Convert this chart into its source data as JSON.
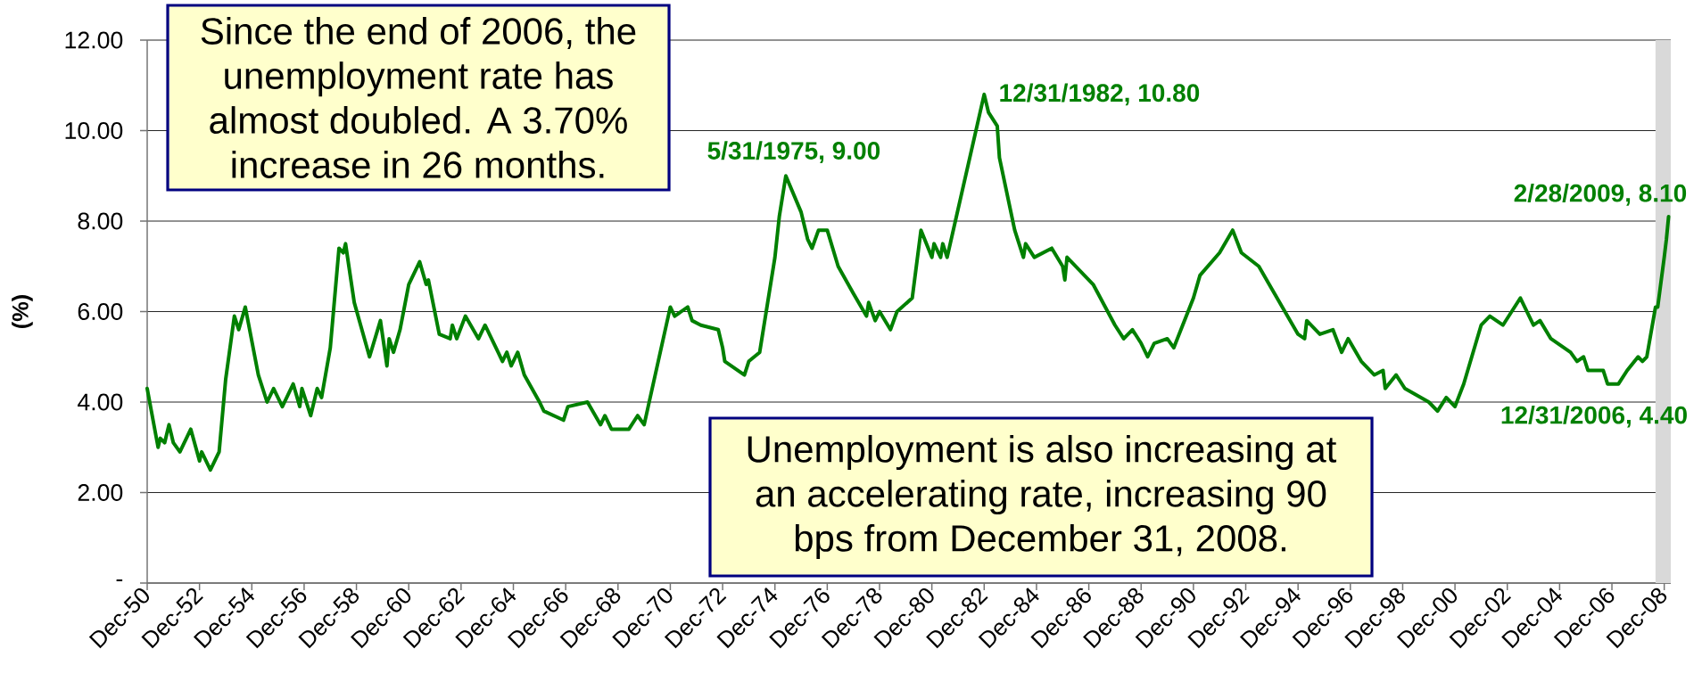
{
  "chart_data": {
    "type": "line",
    "ylabel": "(%)",
    "x": [
      "1950-12",
      "1951-05",
      "1951-06",
      "1951-08",
      "1951-10",
      "1951-12",
      "1952-03",
      "1952-08",
      "1952-12",
      "1953-01",
      "1953-05",
      "1953-09",
      "1953-12",
      "1954-04",
      "1954-06",
      "1954-09",
      "1955-03",
      "1955-07",
      "1955-10",
      "1956-02",
      "1956-07",
      "1956-10",
      "1956-11",
      "1957-03",
      "1957-06",
      "1957-08",
      "1957-12",
      "1958-04",
      "1958-06",
      "1958-07",
      "1958-11",
      "1959-06",
      "1959-11",
      "1960-02",
      "1960-03",
      "1960-05",
      "1960-08",
      "1960-12",
      "1961-05",
      "1961-08",
      "1961-09",
      "1962-02",
      "1962-07",
      "1962-08",
      "1962-10",
      "1963-02",
      "1963-08",
      "1963-11",
      "1964-05",
      "1964-07",
      "1964-09",
      "1964-11",
      "1965-02",
      "1965-05",
      "1965-12",
      "1966-02",
      "1966-11",
      "1967-01",
      "1967-10",
      "1968-04",
      "1968-06",
      "1968-09",
      "1969-05",
      "1969-09",
      "1969-12",
      "1970-12",
      "1971-02",
      "1971-08",
      "1971-10",
      "1972-02",
      "1972-10",
      "1972-12",
      "1973-01",
      "1973-10",
      "1973-12",
      "1974-05",
      "1974-12",
      "1975-02",
      "1975-05",
      "1975-12",
      "1976-03",
      "1976-05",
      "1976-08",
      "1976-12",
      "1977-05",
      "1977-12",
      "1978-06",
      "1978-07",
      "1978-10",
      "1978-12",
      "1979-05",
      "1979-08",
      "1980-03",
      "1980-07",
      "1980-12",
      "1981-01",
      "1981-04",
      "1981-05",
      "1981-07",
      "1982-12",
      "1983-02",
      "1983-06",
      "1983-07",
      "1984-02",
      "1984-06",
      "1984-07",
      "1984-11",
      "1985-07",
      "1985-12",
      "1986-01",
      "1986-02",
      "1986-08",
      "1987-02",
      "1987-12",
      "1988-04",
      "1988-08",
      "1988-12",
      "1989-03",
      "1989-06",
      "1989-12",
      "1990-03",
      "1990-12",
      "1991-03",
      "1991-12",
      "1992-06",
      "1992-10",
      "1993-06",
      "1993-12",
      "1994-12",
      "1995-03",
      "1995-04",
      "1995-10",
      "1996-04",
      "1996-08",
      "1996-11",
      "1997-05",
      "1997-11",
      "1998-03",
      "1998-04",
      "1998-09",
      "1999-01",
      "1999-12",
      "2000-04",
      "2000-08",
      "2000-12",
      "2001-04",
      "2001-12",
      "2002-04",
      "2002-10",
      "2003-06",
      "2003-12",
      "2004-03",
      "2004-08",
      "2005-05",
      "2005-08",
      "2005-11",
      "2006-01",
      "2006-08",
      "2006-10",
      "2006-12",
      "2007-03",
      "2007-07",
      "2007-12",
      "2008-02",
      "2008-04",
      "2008-08",
      "2008-09",
      "2008-12",
      "2009-01",
      "2009-02"
    ],
    "values": [
      4.3,
      3.0,
      3.2,
      3.1,
      3.5,
      3.1,
      2.9,
      3.4,
      2.7,
      2.9,
      2.5,
      2.9,
      4.5,
      5.9,
      5.6,
      6.1,
      4.6,
      4.0,
      4.3,
      3.9,
      4.4,
      3.9,
      4.3,
      3.7,
      4.3,
      4.1,
      5.2,
      7.4,
      7.3,
      7.5,
      6.2,
      5.0,
      5.8,
      4.8,
      5.4,
      5.1,
      5.6,
      6.6,
      7.1,
      6.6,
      6.7,
      5.5,
      5.4,
      5.7,
      5.4,
      5.9,
      5.4,
      5.7,
      5.1,
      4.9,
      5.1,
      4.8,
      5.1,
      4.6,
      4.0,
      3.8,
      3.6,
      3.9,
      4.0,
      3.5,
      3.7,
      3.4,
      3.4,
      3.7,
      3.5,
      6.1,
      5.9,
      6.1,
      5.8,
      5.7,
      5.6,
      5.2,
      4.9,
      4.6,
      4.9,
      5.1,
      7.2,
      8.1,
      9.0,
      8.2,
      7.6,
      7.4,
      7.8,
      7.8,
      7.0,
      6.4,
      5.9,
      6.2,
      5.8,
      6.0,
      5.6,
      6.0,
      6.3,
      7.8,
      7.2,
      7.5,
      7.2,
      7.5,
      7.2,
      10.8,
      10.4,
      10.1,
      9.4,
      7.8,
      7.2,
      7.5,
      7.2,
      7.4,
      7.0,
      6.7,
      7.2,
      6.9,
      6.6,
      5.7,
      5.4,
      5.6,
      5.3,
      5.0,
      5.3,
      5.4,
      5.2,
      6.3,
      6.8,
      7.3,
      7.8,
      7.3,
      7.0,
      6.5,
      5.5,
      5.4,
      5.8,
      5.5,
      5.6,
      5.1,
      5.4,
      4.9,
      4.6,
      4.7,
      4.3,
      4.6,
      4.3,
      4.0,
      3.8,
      4.1,
      3.9,
      4.4,
      5.7,
      5.9,
      5.7,
      6.3,
      5.7,
      5.8,
      5.4,
      5.1,
      4.9,
      5.0,
      4.7,
      4.7,
      4.4,
      4.4,
      4.4,
      4.7,
      5.0,
      4.9,
      5.0,
      6.1,
      6.1,
      7.2,
      7.6,
      8.1
    ],
    "color": "#008000",
    "line_style": "solid",
    "grid": "y",
    "xlim": [
      "1950-12",
      "2009-03"
    ],
    "xticks": [
      {
        "value": "1950-12",
        "label": "Dec-50"
      },
      {
        "value": "1952-12",
        "label": "Dec-52"
      },
      {
        "value": "1954-12",
        "label": "Dec-54"
      },
      {
        "value": "1956-12",
        "label": "Dec-56"
      },
      {
        "value": "1958-12",
        "label": "Dec-58"
      },
      {
        "value": "1960-12",
        "label": "Dec-60"
      },
      {
        "value": "1962-12",
        "label": "Dec-62"
      },
      {
        "value": "1964-12",
        "label": "Dec-64"
      },
      {
        "value": "1966-12",
        "label": "Dec-66"
      },
      {
        "value": "1968-12",
        "label": "Dec-68"
      },
      {
        "value": "1970-12",
        "label": "Dec-70"
      },
      {
        "value": "1972-12",
        "label": "Dec-72"
      },
      {
        "value": "1974-12",
        "label": "Dec-74"
      },
      {
        "value": "1976-12",
        "label": "Dec-76"
      },
      {
        "value": "1978-12",
        "label": "Dec-78"
      },
      {
        "value": "1980-12",
        "label": "Dec-80"
      },
      {
        "value": "1982-12",
        "label": "Dec-82"
      },
      {
        "value": "1984-12",
        "label": "Dec-84"
      },
      {
        "value": "1986-12",
        "label": "Dec-86"
      },
      {
        "value": "1988-12",
        "label": "Dec-88"
      },
      {
        "value": "1990-12",
        "label": "Dec-90"
      },
      {
        "value": "1992-12",
        "label": "Dec-92"
      },
      {
        "value": "1994-12",
        "label": "Dec-94"
      },
      {
        "value": "1996-12",
        "label": "Dec-96"
      },
      {
        "value": "1998-12",
        "label": "Dec-98"
      },
      {
        "value": "2000-12",
        "label": "Dec-00"
      },
      {
        "value": "2002-12",
        "label": "Dec-02"
      },
      {
        "value": "2004-12",
        "label": "Dec-04"
      },
      {
        "value": "2006-12",
        "label": "Dec-06"
      },
      {
        "value": "2008-12",
        "label": "Dec-08"
      }
    ],
    "ylim": [
      0,
      12
    ],
    "yticks": [
      {
        "value": 0,
        "label": "-"
      },
      {
        "value": 2,
        "label": "2.00"
      },
      {
        "value": 4,
        "label": "4.00"
      },
      {
        "value": 6,
        "label": "6.00"
      },
      {
        "value": 8,
        "label": "8.00"
      },
      {
        "value": 10,
        "label": "10.00"
      },
      {
        "value": 12,
        "label": "12.00"
      }
    ],
    "bands": [
      {
        "axis": "x",
        "from": "2008-08",
        "to": "2009-03",
        "color": "#d9d9d9"
      }
    ],
    "annotations": [
      "Since the end of 2006, the unemployment rate has almost doubled. A 3.70% increase in 26 months.",
      {
        "text": "5/31/1975, 9.00",
        "x": "1975-05",
        "y": 9.0
      },
      {
        "text": "12/31/1982, 10.80",
        "x": "1982-12",
        "y": 10.8
      },
      {
        "text": "2/28/2009, 8.10",
        "x": "2009-02",
        "y": 8.1
      },
      {
        "text": "12/31/2006, 4.40",
        "x": "2006-12",
        "y": 4.4
      },
      "Unemployment is also increasing at an accelerating rate, increasing 90 bps from December 31, 2008."
    ]
  }
}
